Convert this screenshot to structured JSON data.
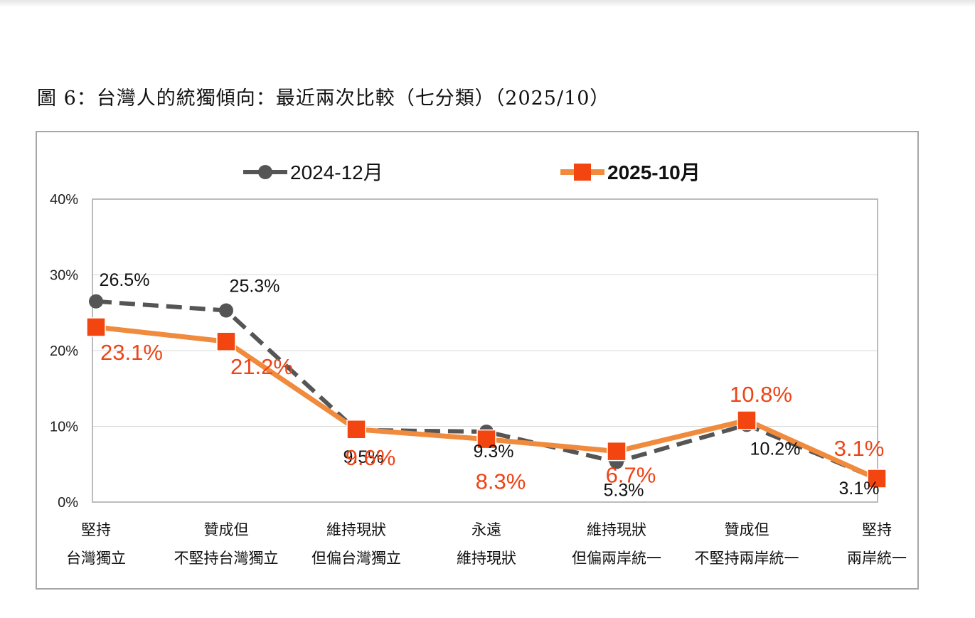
{
  "figure_title": "圖 6：台灣人的統獨傾向：最近兩次比較（七分類）（2025/10）",
  "colors": {
    "series_2024": "#555555",
    "series_2025_line": "#f08a3c",
    "series_2025_marker": "#f2450f",
    "label_2025": "#ee4316",
    "grid": "#d9d9d9",
    "axis": "#a6a6a6"
  },
  "chart_data": {
    "type": "line",
    "title": "",
    "ylim": [
      0,
      40
    ],
    "y_ticks": [
      "0%",
      "10%",
      "20%",
      "30%",
      "40%"
    ],
    "grid": true,
    "legend_position": "top",
    "categories": [
      [
        "堅持",
        "台灣獨立"
      ],
      [
        "贊成但",
        "不堅持台灣獨立"
      ],
      [
        "維持現狀",
        "但偏台灣獨立"
      ],
      [
        "永遠",
        "維持現狀"
      ],
      [
        "維持現狀",
        "但偏兩岸統一"
      ],
      [
        "贊成但",
        "不堅持兩岸統一"
      ],
      [
        "堅持",
        "兩岸統一"
      ]
    ],
    "series": [
      {
        "name": "2024-12月",
        "style": "dashed-circle",
        "values": [
          26.5,
          25.3,
          9.5,
          9.3,
          5.3,
          10.2,
          3.1
        ],
        "labels": [
          "26.5%",
          "25.3%",
          "9.5%",
          "9.3%",
          "5.3%",
          "10.2%",
          "3.1%"
        ]
      },
      {
        "name": "2025-10月",
        "style": "solid-square",
        "values": [
          23.1,
          21.2,
          9.6,
          8.3,
          6.7,
          10.8,
          3.1
        ],
        "labels": [
          "23.1%",
          "21.2%",
          "9.6%",
          "8.3%",
          "6.7%",
          "10.8%",
          "3.1%"
        ]
      }
    ]
  }
}
